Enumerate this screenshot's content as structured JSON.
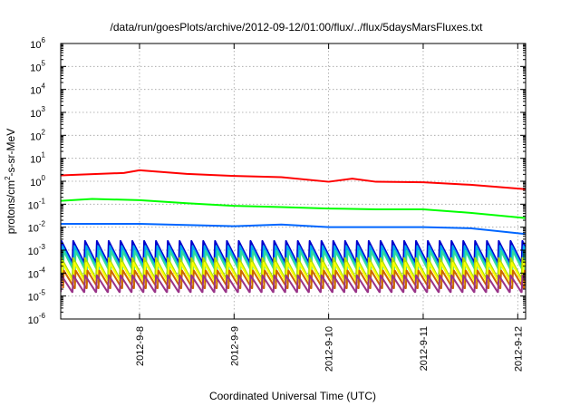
{
  "chart_data": {
    "type": "line",
    "title": "/data/run/goesPlots/archive/2012-09-12/01:00/flux/../flux/5daysMarsFluxes.txt",
    "xlabel": "Coordinated Universal Time (UTC)",
    "ylabel": {
      "prefix": "protons/cm",
      "superscript": "2",
      "suffix": "-s-sr-MeV"
    },
    "yscale": "log",
    "ylim": [
      1e-06,
      1000000.0
    ],
    "xlim": [
      "2012-09-07T04:00",
      "2012-09-12T02:00"
    ],
    "grid": true,
    "legend": "none",
    "y_ticks": [
      {
        "base": "10",
        "exp": "-6"
      },
      {
        "base": "10",
        "exp": "-5"
      },
      {
        "base": "10",
        "exp": "-4"
      },
      {
        "base": "10",
        "exp": "-3"
      },
      {
        "base": "10",
        "exp": "-2"
      },
      {
        "base": "10",
        "exp": "-1"
      },
      {
        "base": "10",
        "exp": "0"
      },
      {
        "base": "10",
        "exp": "1"
      },
      {
        "base": "10",
        "exp": "2"
      },
      {
        "base": "10",
        "exp": "3"
      },
      {
        "base": "10",
        "exp": "4"
      },
      {
        "base": "10",
        "exp": "5"
      },
      {
        "base": "10",
        "exp": "6"
      }
    ],
    "x_ticks": [
      "2012-9-8",
      "2012-9-9",
      "2012-9-10",
      "2012-9-11",
      "2012-9-12"
    ],
    "series": [
      {
        "color": "#ff0000",
        "points": [
          {
            "x": "2012-09-07T04:00",
            "y": 1.8
          },
          {
            "x": "2012-09-07T20:00",
            "y": 2.3
          },
          {
            "x": "2012-09-08T00:00",
            "y": 3.0
          },
          {
            "x": "2012-09-08T12:00",
            "y": 2.1
          },
          {
            "x": "2012-09-09T00:00",
            "y": 1.7
          },
          {
            "x": "2012-09-09T12:00",
            "y": 1.5
          },
          {
            "x": "2012-09-10T00:00",
            "y": 0.95
          },
          {
            "x": "2012-09-10T06:00",
            "y": 1.3
          },
          {
            "x": "2012-09-10T12:00",
            "y": 0.95
          },
          {
            "x": "2012-09-11T00:00",
            "y": 0.9
          },
          {
            "x": "2012-09-11T12:00",
            "y": 0.7
          },
          {
            "x": "2012-09-12T02:00",
            "y": 0.45
          }
        ]
      },
      {
        "color": "#00ff00",
        "points": [
          {
            "x": "2012-09-07T04:00",
            "y": 0.14
          },
          {
            "x": "2012-09-07T12:00",
            "y": 0.17
          },
          {
            "x": "2012-09-08T00:00",
            "y": 0.15
          },
          {
            "x": "2012-09-08T12:00",
            "y": 0.11
          },
          {
            "x": "2012-09-09T00:00",
            "y": 0.085
          },
          {
            "x": "2012-09-09T12:00",
            "y": 0.075
          },
          {
            "x": "2012-09-10T00:00",
            "y": 0.065
          },
          {
            "x": "2012-09-10T12:00",
            "y": 0.06
          },
          {
            "x": "2012-09-11T00:00",
            "y": 0.06
          },
          {
            "x": "2012-09-11T12:00",
            "y": 0.042
          },
          {
            "x": "2012-09-12T02:00",
            "y": 0.025
          }
        ]
      },
      {
        "color": "#0066ff",
        "points": [
          {
            "x": "2012-09-07T04:00",
            "y": 0.014
          },
          {
            "x": "2012-09-08T00:00",
            "y": 0.014
          },
          {
            "x": "2012-09-09T00:00",
            "y": 0.011
          },
          {
            "x": "2012-09-09T12:00",
            "y": 0.013
          },
          {
            "x": "2012-09-10T00:00",
            "y": 0.01
          },
          {
            "x": "2012-09-11T00:00",
            "y": 0.01
          },
          {
            "x": "2012-09-11T12:00",
            "y": 0.009
          },
          {
            "x": "2012-09-12T02:00",
            "y": 0.005
          }
        ]
      },
      {
        "color": "#0000cc",
        "sawtooth": {
          "low": 0.0003,
          "high": 0.0025
        }
      },
      {
        "color": "#00aaee",
        "sawtooth": {
          "low": 0.00018,
          "high": 0.0015
        }
      },
      {
        "color": "#33dd99",
        "sawtooth": {
          "low": 0.00011,
          "high": 0.0009
        }
      },
      {
        "color": "#aadd00",
        "sawtooth": {
          "low": 6e-05,
          "high": 0.00045
        }
      },
      {
        "color": "#ffff00",
        "sawtooth": {
          "low": 4e-05,
          "high": 0.00028
        }
      },
      {
        "color": "#cc6600",
        "sawtooth": {
          "low": 2.2e-05,
          "high": 0.00013
        }
      },
      {
        "color": "#993388",
        "sawtooth": {
          "low": 1.5e-05,
          "high": 8e-05
        }
      }
    ],
    "sawtooth_period_hours": 3
  }
}
